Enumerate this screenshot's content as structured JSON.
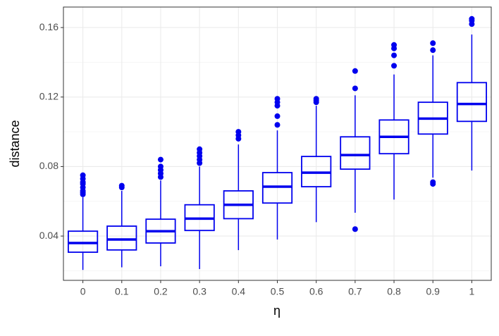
{
  "chart_data": {
    "type": "box",
    "x_label": "η",
    "y_label": "distance",
    "categories": [
      "0",
      "0.1",
      "0.2",
      "0.3",
      "0.4",
      "0.5",
      "0.6",
      "0.7",
      "0.8",
      "0.9",
      "1"
    ],
    "color": "#0000ee",
    "boxes": [
      {
        "min": 0.0205,
        "q1": 0.0307,
        "median": 0.036,
        "q3": 0.0428,
        "max": 0.0623,
        "outliers": [
          0.064,
          0.065,
          0.066,
          0.068,
          0.07,
          0.071,
          0.073,
          0.075
        ]
      },
      {
        "min": 0.022,
        "q1": 0.032,
        "median": 0.038,
        "q3": 0.0457,
        "max": 0.066,
        "outliers": [
          0.068,
          0.069
        ]
      },
      {
        "min": 0.0226,
        "q1": 0.036,
        "median": 0.0428,
        "q3": 0.0497,
        "max": 0.072,
        "outliers": [
          0.074,
          0.076,
          0.078,
          0.08,
          0.084
        ]
      },
      {
        "min": 0.021,
        "q1": 0.0432,
        "median": 0.05,
        "q3": 0.058,
        "max": 0.08,
        "outliers": [
          0.082,
          0.084,
          0.086,
          0.088,
          0.09
        ]
      },
      {
        "min": 0.0319,
        "q1": 0.05,
        "median": 0.058,
        "q3": 0.066,
        "max": 0.0927,
        "outliers": [
          0.096,
          0.098,
          0.1
        ]
      },
      {
        "min": 0.038,
        "q1": 0.059,
        "median": 0.0684,
        "q3": 0.0765,
        "max": 0.1008,
        "outliers": [
          0.104,
          0.109,
          0.115,
          0.117,
          0.119
        ]
      },
      {
        "min": 0.048,
        "q1": 0.0684,
        "median": 0.0765,
        "q3": 0.0858,
        "max": 0.115,
        "outliers": [
          0.117,
          0.118,
          0.119
        ]
      },
      {
        "min": 0.0534,
        "q1": 0.0785,
        "median": 0.0866,
        "q3": 0.0971,
        "max": 0.121,
        "outliers": [
          0.044,
          0.125,
          0.135
        ]
      },
      {
        "min": 0.061,
        "q1": 0.0874,
        "median": 0.0971,
        "q3": 0.1068,
        "max": 0.133,
        "outliers": [
          0.138,
          0.144,
          0.148,
          0.15
        ]
      },
      {
        "min": 0.0736,
        "q1": 0.0987,
        "median": 0.1076,
        "q3": 0.117,
        "max": 0.144,
        "outliers": [
          0.07,
          0.071,
          0.147,
          0.151
        ]
      },
      {
        "min": 0.0777,
        "q1": 0.106,
        "median": 0.116,
        "q3": 0.1283,
        "max": 0.156,
        "outliers": [
          0.162,
          0.164,
          0.165
        ]
      }
    ],
    "ylim": [
      0.0145,
      0.1718
    ],
    "yticks": [
      0.04,
      0.08,
      0.12,
      0.16
    ],
    "minor_yticks": [
      0.02,
      0.06,
      0.1,
      0.14
    ],
    "grid": true
  }
}
